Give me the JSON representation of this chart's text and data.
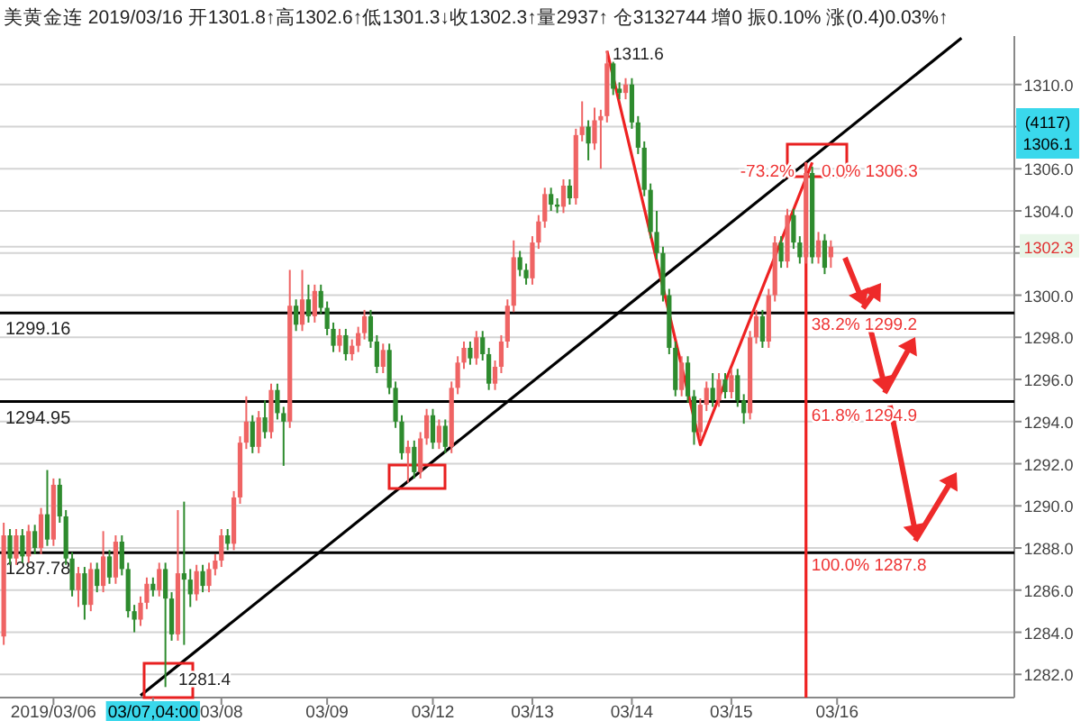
{
  "chart_data": {
    "type": "candlestick",
    "title": "美黄金连 2019/03/16 开1301.8↑高1302.6↑低1301.3↓收1302.3↑量2937↑ 仓3132744 增0 振0.10% 涨(0.4)0.03%↑",
    "annotations": [
      "1311.6",
      "1281.4",
      "-73.2%",
      "0.0% 1306.3",
      {
        "text": "38.2% 1299.2",
        "y": 1299.2
      },
      {
        "text": "61.8% 1294.9",
        "y": 1294.9
      },
      {
        "text": "100.0% 1287.8",
        "y": 1287.8
      },
      "(4117) 1306.1"
    ],
    "categories": [
      null,
      null,
      null,
      null,
      null,
      null,
      null,
      null,
      "2019/03/06",
      null,
      null,
      null,
      null,
      null,
      null,
      null,
      null,
      null,
      null,
      null,
      null,
      null,
      null,
      null,
      "03/07,04:00",
      null,
      null,
      null,
      null,
      null,
      null,
      null,
      null,
      null,
      null,
      "03/08",
      null,
      null,
      null,
      null,
      null,
      null,
      null,
      null,
      null,
      null,
      null,
      null,
      null,
      null,
      null,
      null,
      "03/09",
      null,
      null,
      null,
      null,
      null,
      null,
      null,
      null,
      null,
      null,
      null,
      null,
      null,
      null,
      null,
      null,
      "03/12",
      null,
      null,
      null,
      null,
      null,
      null,
      null,
      null,
      null,
      null,
      null,
      null,
      null,
      null,
      null,
      "03/13",
      null,
      null,
      null,
      null,
      null,
      null,
      null,
      null,
      null,
      null,
      null,
      null,
      null,
      null,
      null,
      "03/14",
      null,
      null,
      null,
      null,
      null,
      null,
      null,
      null,
      null,
      null,
      null,
      null,
      null,
      null,
      null,
      "03/15",
      null,
      null,
      null,
      null,
      null,
      null,
      null,
      null,
      null,
      null,
      null,
      null,
      null,
      null,
      null,
      null,
      "03/16",
      null,
      null,
      null,
      null,
      null,
      null,
      null,
      null,
      null,
      null,
      null,
      null,
      null,
      null,
      null,
      null,
      null,
      null,
      null,
      null,
      null,
      null,
      null,
      null,
      null,
      null,
      null,
      null
    ],
    "ohlc": [
      [
        1283.8,
        1289.2,
        1283.4,
        1288.6
      ],
      [
        1288.6,
        1288.9,
        1287.2,
        1287.5
      ],
      [
        1287.5,
        1288.9,
        1287.2,
        1288.6
      ],
      [
        1288.6,
        1288.9,
        1287.3,
        1287.6
      ],
      [
        1287.6,
        1289.1,
        1287.3,
        1288.8
      ],
      [
        1288.8,
        1289.1,
        1287.7,
        1288.0
      ],
      [
        1288.0,
        1289.9,
        1287.7,
        1289.6
      ],
      [
        1289.6,
        1291.7,
        1288.1,
        1288.4
      ],
      [
        1288.4,
        1291.3,
        1288.1,
        1291.0
      ],
      [
        1291.0,
        1291.3,
        1289.2,
        1289.5
      ],
      [
        1289.5,
        1289.8,
        1287.2,
        1287.5
      ],
      [
        1287.5,
        1287.8,
        1285.7,
        1286.0
      ],
      [
        1286.0,
        1287.1,
        1285.2,
        1286.8
      ],
      [
        1286.8,
        1287.1,
        1284.6,
        1285.3
      ],
      [
        1285.3,
        1287.3,
        1285.0,
        1287.0
      ],
      [
        1287.0,
        1287.3,
        1285.9,
        1286.2
      ],
      [
        1286.2,
        1288.8,
        1285.9,
        1287.6
      ],
      [
        1287.6,
        1287.9,
        1286.3,
        1286.6
      ],
      [
        1286.6,
        1288.6,
        1286.3,
        1288.3
      ],
      [
        1288.3,
        1288.6,
        1286.7,
        1287.0
      ],
      [
        1287.0,
        1287.3,
        1284.7,
        1285.0
      ],
      [
        1285.0,
        1285.3,
        1284.0,
        1284.6
      ],
      [
        1284.6,
        1285.7,
        1284.3,
        1285.4
      ],
      [
        1285.4,
        1286.6,
        1285.1,
        1286.3
      ],
      [
        1286.3,
        1286.6,
        1285.7,
        1286.0
      ],
      [
        1286.0,
        1287.3,
        1285.7,
        1287.0
      ],
      [
        1287.0,
        1287.3,
        1281.4,
        1285.6
      ],
      [
        1285.6,
        1285.9,
        1283.6,
        1283.9
      ],
      [
        1283.9,
        1289.8,
        1283.6,
        1286.8
      ],
      [
        1286.8,
        1290.2,
        1283.4,
        1286.5
      ],
      [
        1286.5,
        1287.0,
        1285.2,
        1285.8
      ],
      [
        1285.8,
        1287.2,
        1285.5,
        1286.9
      ],
      [
        1286.9,
        1287.2,
        1285.9,
        1286.2
      ],
      [
        1286.2,
        1287.3,
        1285.9,
        1287.0
      ],
      [
        1287.0,
        1287.7,
        1286.7,
        1287.4
      ],
      [
        1287.4,
        1288.9,
        1287.1,
        1288.6
      ],
      [
        1288.6,
        1288.9,
        1287.9,
        1288.2
      ],
      [
        1288.2,
        1290.7,
        1287.9,
        1290.4
      ],
      [
        1290.4,
        1293.3,
        1290.1,
        1293.0
      ],
      [
        1293.0,
        1295.2,
        1292.7,
        1294.0
      ],
      [
        1294.0,
        1294.3,
        1292.5,
        1292.8
      ],
      [
        1292.8,
        1294.5,
        1292.5,
        1294.2
      ],
      [
        1294.2,
        1295.0,
        1293.2,
        1293.5
      ],
      [
        1293.5,
        1295.8,
        1293.2,
        1295.5
      ],
      [
        1295.5,
        1295.8,
        1294.1,
        1294.4
      ],
      [
        1294.4,
        1294.7,
        1291.9,
        1294.0
      ],
      [
        1294.0,
        1301.2,
        1293.7,
        1299.5
      ],
      [
        1299.5,
        1299.8,
        1298.3,
        1298.6
      ],
      [
        1298.6,
        1301.2,
        1298.3,
        1299.8
      ],
      [
        1299.8,
        1300.5,
        1298.7,
        1299.0
      ],
      [
        1299.0,
        1300.5,
        1298.7,
        1300.2
      ],
      [
        1300.2,
        1300.5,
        1299.1,
        1299.4
      ],
      [
        1299.4,
        1299.7,
        1298.1,
        1298.4
      ],
      [
        1298.4,
        1298.7,
        1297.3,
        1297.6
      ],
      [
        1297.6,
        1298.4,
        1297.3,
        1298.1
      ],
      [
        1298.1,
        1298.4,
        1296.9,
        1297.2
      ],
      [
        1297.2,
        1297.9,
        1296.9,
        1297.6
      ],
      [
        1297.6,
        1298.5,
        1297.3,
        1298.2
      ],
      [
        1298.2,
        1299.3,
        1297.9,
        1299.0
      ],
      [
        1299.0,
        1299.3,
        1297.5,
        1297.8
      ],
      [
        1297.8,
        1298.1,
        1296.3,
        1296.6
      ],
      [
        1296.6,
        1297.7,
        1296.3,
        1297.4
      ],
      [
        1297.4,
        1297.7,
        1295.3,
        1295.6
      ],
      [
        1295.6,
        1295.9,
        1293.7,
        1294.0
      ],
      [
        1294.0,
        1294.3,
        1292.2,
        1292.5
      ],
      [
        1292.5,
        1293.1,
        1291.1,
        1292.8
      ],
      [
        1292.8,
        1293.1,
        1291.3,
        1291.6
      ],
      [
        1291.6,
        1293.5,
        1291.3,
        1293.2
      ],
      [
        1293.2,
        1294.6,
        1292.9,
        1294.3
      ],
      [
        1294.3,
        1294.6,
        1292.7,
        1293.0
      ],
      [
        1293.0,
        1294.1,
        1292.7,
        1293.8
      ],
      [
        1293.8,
        1294.1,
        1292.5,
        1292.8
      ],
      [
        1292.8,
        1295.9,
        1292.5,
        1295.6
      ],
      [
        1295.6,
        1297.1,
        1295.3,
        1296.8
      ],
      [
        1296.8,
        1297.8,
        1296.5,
        1297.5
      ],
      [
        1297.5,
        1297.8,
        1296.7,
        1297.0
      ],
      [
        1297.0,
        1298.3,
        1296.7,
        1298.0
      ],
      [
        1298.0,
        1298.3,
        1296.9,
        1297.2
      ],
      [
        1297.2,
        1297.5,
        1295.5,
        1295.8
      ],
      [
        1295.8,
        1296.9,
        1295.5,
        1296.6
      ],
      [
        1296.6,
        1298.1,
        1296.3,
        1297.8
      ],
      [
        1297.8,
        1299.8,
        1297.5,
        1299.5
      ],
      [
        1299.5,
        1302.6,
        1299.2,
        1301.8
      ],
      [
        1301.8,
        1302.1,
        1300.9,
        1301.2
      ],
      [
        1301.2,
        1301.5,
        1300.5,
        1300.8
      ],
      [
        1300.8,
        1302.8,
        1300.5,
        1302.5
      ],
      [
        1302.5,
        1303.8,
        1302.2,
        1303.5
      ],
      [
        1303.5,
        1305.1,
        1303.2,
        1304.8
      ],
      [
        1304.8,
        1305.1,
        1304.0,
        1304.3
      ],
      [
        1304.3,
        1304.6,
        1303.9,
        1304.2
      ],
      [
        1304.2,
        1305.5,
        1303.9,
        1305.2
      ],
      [
        1305.2,
        1305.5,
        1304.3,
        1304.6
      ],
      [
        1304.6,
        1307.9,
        1304.3,
        1307.6
      ],
      [
        1307.6,
        1309.2,
        1307.3,
        1308.0
      ],
      [
        1308.0,
        1308.3,
        1306.4,
        1307.2
      ],
      [
        1307.2,
        1308.9,
        1306.9,
        1308.3
      ],
      [
        1308.3,
        1308.8,
        1306.0,
        1308.5
      ],
      [
        1308.5,
        1311.6,
        1308.2,
        1311.0
      ],
      [
        1311.0,
        1311.3,
        1309.5,
        1309.8
      ],
      [
        1309.8,
        1310.1,
        1309.3,
        1309.6
      ],
      [
        1309.6,
        1310.3,
        1309.3,
        1310.0
      ],
      [
        1310.0,
        1310.3,
        1307.9,
        1308.2
      ],
      [
        1308.2,
        1308.5,
        1306.7,
        1307.0
      ],
      [
        1307.0,
        1307.3,
        1304.7,
        1305.0
      ],
      [
        1305.0,
        1305.3,
        1302.7,
        1303.0
      ],
      [
        1303.0,
        1304.0,
        1301.7,
        1302.0
      ],
      [
        1302.0,
        1302.3,
        1299.7,
        1300.0
      ],
      [
        1300.0,
        1300.3,
        1297.2,
        1297.5
      ],
      [
        1297.5,
        1297.8,
        1295.2,
        1295.5
      ],
      [
        1295.5,
        1297.1,
        1295.2,
        1296.8
      ],
      [
        1296.8,
        1297.1,
        1294.9,
        1295.2
      ],
      [
        1295.2,
        1295.5,
        1292.9,
        1293.5
      ],
      [
        1293.5,
        1295.1,
        1293.2,
        1294.8
      ],
      [
        1294.8,
        1295.9,
        1294.5,
        1295.6
      ],
      [
        1295.6,
        1296.3,
        1294.7,
        1295.0
      ],
      [
        1295.0,
        1296.3,
        1294.7,
        1296.0
      ],
      [
        1296.0,
        1296.3,
        1295.1,
        1295.4
      ],
      [
        1295.4,
        1296.5,
        1295.1,
        1296.2
      ],
      [
        1296.2,
        1296.5,
        1294.7,
        1295.0
      ],
      [
        1295.0,
        1295.3,
        1293.9,
        1294.4
      ],
      [
        1294.4,
        1298.3,
        1294.1,
        1298.0
      ],
      [
        1298.0,
        1299.3,
        1297.7,
        1299.0
      ],
      [
        1299.0,
        1299.3,
        1297.5,
        1297.8
      ],
      [
        1297.8,
        1300.3,
        1297.5,
        1300.0
      ],
      [
        1300.0,
        1302.8,
        1299.7,
        1302.5
      ],
      [
        1302.5,
        1302.8,
        1301.3,
        1301.6
      ],
      [
        1301.6,
        1304.1,
        1301.3,
        1303.8
      ],
      [
        1303.8,
        1304.1,
        1302.2,
        1302.5
      ],
      [
        1302.5,
        1302.8,
        1301.5,
        1301.8
      ],
      [
        1301.8,
        1306.3,
        1301.5,
        1305.8
      ],
      [
        1305.8,
        1306.1,
        1301.5,
        1301.8
      ],
      [
        1301.8,
        1303.0,
        1301.5,
        1302.6
      ],
      [
        1302.6,
        1302.9,
        1301.0,
        1301.3
      ],
      [
        1301.8,
        1302.6,
        1301.3,
        1302.3
      ],
      null,
      null,
      null,
      null,
      null,
      null,
      null,
      null,
      null,
      null,
      null,
      null,
      null,
      null,
      null,
      null,
      null,
      null,
      null,
      null,
      null,
      null,
      null,
      null,
      null,
      null,
      null,
      null,
      null
    ],
    "colors": [
      "#ef6464",
      "#2e8b2e",
      "#ef6464",
      "#2e8b2e",
      "#ef6464",
      "#2e8b2e",
      "#ef6464",
      "#2e8b2e",
      "#ef6464",
      "#2e8b2e",
      "#2e8b2e",
      "#2e8b2e",
      "#ef6464",
      "#2e8b2e",
      "#ef6464",
      "#2e8b2e",
      "#ef6464",
      "#2e8b2e",
      "#ef6464",
      "#2e8b2e",
      "#2e8b2e",
      "#2e8b2e",
      "#ef6464",
      "#ef6464",
      "#2e8b2e",
      "#ef6464",
      "#2e8b2e",
      "#2e8b2e",
      "#ef6464",
      "#2e8b2e",
      "#2e8b2e",
      "#ef6464",
      "#2e8b2e",
      "#ef6464",
      "#ef6464",
      "#ef6464",
      "#2e8b2e",
      "#ef6464",
      "#ef6464",
      "#ef6464",
      "#2e8b2e",
      "#ef6464",
      "#2e8b2e",
      "#ef6464",
      "#2e8b2e",
      "#2e8b2e",
      "#ef6464",
      "#2e8b2e",
      "#ef6464",
      "#2e8b2e",
      "#ef6464",
      "#2e8b2e",
      "#2e8b2e",
      "#2e8b2e",
      "#ef6464",
      "#2e8b2e",
      "#ef6464",
      "#ef6464",
      "#ef6464",
      "#2e8b2e",
      "#2e8b2e",
      "#ef6464",
      "#2e8b2e",
      "#2e8b2e",
      "#2e8b2e",
      "#ef6464",
      "#2e8b2e",
      "#ef6464",
      "#ef6464",
      "#2e8b2e",
      "#ef6464",
      "#2e8b2e",
      "#ef6464",
      "#ef6464",
      "#ef6464",
      "#2e8b2e",
      "#ef6464",
      "#2e8b2e",
      "#2e8b2e",
      "#ef6464",
      "#ef6464",
      "#ef6464",
      "#ef6464",
      "#2e8b2e",
      "#2e8b2e",
      "#ef6464",
      "#ef6464",
      "#ef6464",
      "#2e8b2e",
      "#2e8b2e",
      "#ef6464",
      "#2e8b2e",
      "#ef6464",
      "#ef6464",
      "#2e8b2e",
      "#ef6464",
      "#ef6464",
      "#ef6464",
      "#2e8b2e",
      "#2e8b2e",
      "#ef6464",
      "#2e8b2e",
      "#2e8b2e",
      "#2e8b2e",
      "#2e8b2e",
      "#2e8b2e",
      "#2e8b2e",
      "#2e8b2e",
      "#2e8b2e",
      "#ef6464",
      "#2e8b2e",
      "#2e8b2e",
      "#ef6464",
      "#ef6464",
      "#2e8b2e",
      "#ef6464",
      "#2e8b2e",
      "#ef6464",
      "#2e8b2e",
      "#2e8b2e",
      "#ef6464",
      "#ef6464",
      "#2e8b2e",
      "#ef6464",
      "#ef6464",
      "#2e8b2e",
      "#ef6464",
      "#2e8b2e",
      "#2e8b2e",
      "#ef6464",
      "#2e8b2e",
      "#ef6464",
      "#2e8b2e",
      "#ef6464",
      null,
      null,
      null,
      null,
      null,
      null,
      null,
      null,
      null,
      null,
      null,
      null,
      null,
      null,
      null,
      null,
      null,
      null,
      null,
      null,
      null,
      null,
      null,
      null,
      null,
      null,
      null,
      null,
      null
    ],
    "series": [
      {
        "type": "line",
        "color": "#000000",
        "values": [
          null,
          null,
          null,
          null,
          null,
          null,
          null,
          null,
          null,
          null,
          null,
          null,
          null,
          null,
          null,
          null,
          null,
          null,
          null,
          null,
          null,
          null,
          1281.0,
          null,
          null,
          null,
          null,
          null,
          null,
          null,
          null,
          null,
          null,
          null,
          null,
          null,
          null,
          null,
          null,
          null,
          null,
          null,
          null,
          null,
          null,
          null,
          null,
          null,
          null,
          null,
          null,
          null,
          null,
          null,
          null,
          null,
          null,
          null,
          null,
          null,
          null,
          null,
          null,
          null,
          null,
          null,
          null,
          null,
          null,
          null,
          null,
          null,
          null,
          null,
          null,
          null,
          null,
          null,
          null,
          null,
          null,
          null,
          null,
          null,
          null,
          null,
          null,
          null,
          null,
          null,
          null,
          null,
          null,
          null,
          null,
          null,
          null,
          null,
          null,
          null,
          null,
          null,
          null,
          null,
          null,
          null,
          null,
          null,
          null,
          null,
          null,
          null,
          null,
          null,
          null,
          null,
          null,
          null,
          null,
          null,
          null,
          null,
          null,
          null,
          null,
          null,
          null,
          null,
          null,
          null,
          null,
          null,
          null,
          null,
          null,
          null,
          null,
          null,
          null,
          null,
          null,
          null,
          null,
          null,
          null,
          null,
          null,
          null,
          null,
          null,
          null,
          null,
          null,
          null,
          1312.2,
          null,
          null,
          null,
          null,
          null,
          null,
          null,
          null
        ]
      },
      {
        "type": "line",
        "color": "#ee2222",
        "values": [
          null,
          null,
          null,
          null,
          null,
          null,
          null,
          null,
          null,
          null,
          null,
          null,
          null,
          null,
          null,
          null,
          null,
          null,
          null,
          null,
          null,
          null,
          null,
          null,
          null,
          null,
          null,
          null,
          null,
          null,
          null,
          null,
          null,
          null,
          null,
          null,
          null,
          null,
          null,
          null,
          null,
          null,
          null,
          null,
          null,
          null,
          null,
          null,
          null,
          null,
          null,
          null,
          null,
          null,
          null,
          null,
          null,
          null,
          null,
          null,
          null,
          null,
          null,
          null,
          null,
          null,
          null,
          null,
          null,
          null,
          null,
          null,
          null,
          null,
          null,
          null,
          null,
          null,
          null,
          null,
          null,
          null,
          null,
          null,
          null,
          null,
          null,
          null,
          null,
          null,
          null,
          null,
          null,
          null,
          null,
          null,
          null,
          1311.6,
          null,
          null,
          null,
          null,
          null,
          null,
          null,
          null,
          null,
          null,
          null,
          null,
          null,
          null,
          1292.9,
          null,
          null,
          null,
          null,
          null,
          null,
          null,
          null,
          null,
          null,
          null,
          null,
          null,
          null,
          null,
          null,
          null,
          1306.3,
          null,
          null,
          null,
          null,
          null,
          null,
          null,
          null,
          null,
          null,
          null,
          null,
          null,
          null,
          null,
          null,
          null,
          null,
          null,
          null,
          null,
          null,
          null,
          null,
          null,
          null,
          null,
          null,
          null,
          null,
          null,
          null
        ]
      }
    ],
    "ref_lines": [
      {
        "axis": "y",
        "value": 1299.16,
        "label": "1299.16",
        "color": "#000000"
      },
      {
        "axis": "y",
        "value": 1294.95,
        "label": "1294.95",
        "color": "#000000"
      },
      {
        "axis": "y",
        "value": 1287.78,
        "label": "1287.78",
        "color": "#000000"
      }
    ],
    "ylim": [
      1280.9,
      1312.3
    ],
    "yticks": [
      {
        "value": 1282,
        "label": "1282.0"
      },
      {
        "value": 1284,
        "label": "1284.0"
      },
      {
        "value": 1286,
        "label": "1286.0"
      },
      {
        "value": 1288,
        "label": "1288.0"
      },
      {
        "value": 1290,
        "label": "1290.0"
      },
      {
        "value": 1292,
        "label": "1292.0"
      },
      {
        "value": 1294,
        "label": "1294.0"
      },
      {
        "value": 1296,
        "label": "1296.0"
      },
      {
        "value": 1298,
        "label": "1298.0"
      },
      {
        "value": 1300,
        "label": "1300.0"
      },
      {
        "value": 1302,
        "label": null
      },
      {
        "value": 1302.3,
        "label": "1302.3"
      },
      {
        "value": 1304,
        "label": "1304.0"
      },
      {
        "value": 1306,
        "label": "1306.0"
      },
      {
        "value": 1308,
        "label": null
      },
      {
        "value": 1310,
        "label": "1310.0"
      }
    ],
    "grid": "y"
  }
}
